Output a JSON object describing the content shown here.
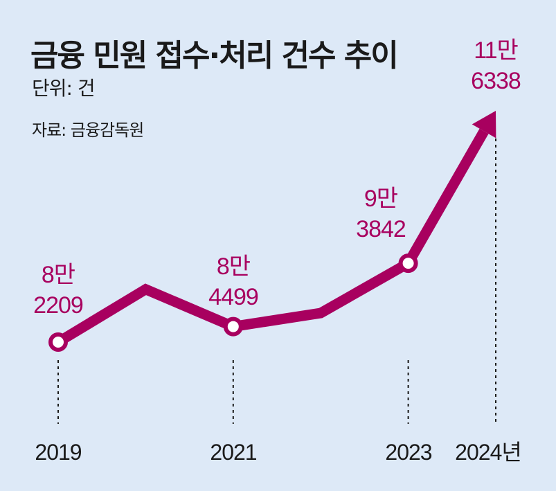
{
  "title": "금융 민원 접수·처리 건수 추이",
  "unit": "단위: 건",
  "source": "자료: 금융감독원",
  "colors": {
    "background": "#dde9f7",
    "line": "#a8005f",
    "marker_fill": "#ffffff",
    "text": "#1a1a1a"
  },
  "chart_data": {
    "type": "line",
    "x": [
      "2019",
      "2020",
      "2021",
      "2022",
      "2023",
      "2024"
    ],
    "values": [
      82209,
      90000,
      84499,
      86500,
      93842,
      116338
    ],
    "x_tick_labels": [
      "2019",
      "2021",
      "2023",
      "2024년"
    ],
    "data_labels": [
      {
        "x": "2019",
        "line1": "8만",
        "line2": "2209"
      },
      {
        "x": "2021",
        "line1": "8만",
        "line2": "4499"
      },
      {
        "x": "2023",
        "line1": "9만",
        "line2": "3842"
      },
      {
        "x": "2024",
        "line1": "11만",
        "line2": "6338"
      }
    ],
    "marked_years": [
      "2019",
      "2021",
      "2023"
    ],
    "arrow_end": "2024",
    "grid": false,
    "legend": "none"
  }
}
